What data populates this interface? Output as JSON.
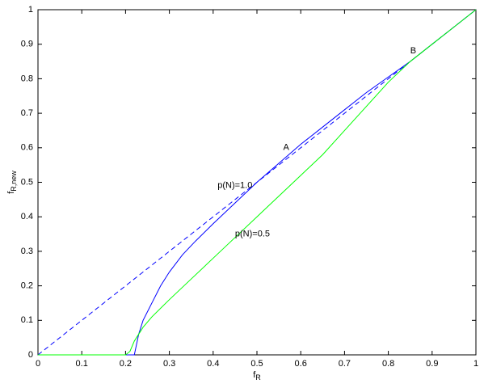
{
  "chart_data": {
    "type": "line",
    "x_label": "f",
    "x_label_subscript": "R",
    "y_label": "f",
    "y_label_subscript": "R,new",
    "xlim": [
      0,
      1
    ],
    "ylim": [
      0,
      1
    ],
    "xticks": [
      0,
      0.1,
      0.2,
      0.3,
      0.4,
      0.5,
      0.6,
      0.7,
      0.8,
      0.9,
      1
    ],
    "yticks": [
      0,
      0.1,
      0.2,
      0.3,
      0.4,
      0.5,
      0.6,
      0.7,
      0.8,
      0.9,
      1
    ],
    "grid": false,
    "series": [
      {
        "color": "#0000ff",
        "dashed": true,
        "x": [
          0,
          1
        ],
        "values": [
          0,
          1
        ]
      },
      {
        "color": "#0000ff",
        "dashed": false,
        "x": [
          0,
          0.22,
          0.225,
          0.23,
          0.24,
          0.26,
          0.28,
          0.3,
          0.33,
          0.36,
          0.4,
          0.45,
          0.5,
          0.55,
          0.6,
          0.65,
          0.7,
          0.75,
          0.8,
          0.85,
          0.9,
          0.95,
          1
        ],
        "values": [
          0,
          0,
          0.03,
          0.06,
          0.1,
          0.15,
          0.2,
          0.24,
          0.29,
          0.33,
          0.38,
          0.44,
          0.5,
          0.555,
          0.61,
          0.66,
          0.71,
          0.76,
          0.805,
          0.85,
          0.9,
          0.95,
          1
        ]
      },
      {
        "color": "#00ff00",
        "dashed": false,
        "x": [
          0,
          0.2,
          0.21,
          0.22,
          0.24,
          0.26,
          0.3,
          0.35,
          0.4,
          0.45,
          0.5,
          0.55,
          0.6,
          0.65,
          0.7,
          0.75,
          0.8,
          0.85,
          0.9,
          0.95,
          1
        ],
        "values": [
          0,
          0,
          0.01,
          0.04,
          0.08,
          0.11,
          0.16,
          0.22,
          0.28,
          0.34,
          0.4,
          0.46,
          0.52,
          0.58,
          0.65,
          0.72,
          0.79,
          0.85,
          0.9,
          0.95,
          1
        ]
      }
    ],
    "annotations": [
      {
        "text": "A",
        "x": 0.56,
        "y": 0.6
      },
      {
        "text": "B",
        "x": 0.85,
        "y": 0.88
      },
      {
        "text": "p(N)=1.0",
        "x": 0.41,
        "y": 0.49
      },
      {
        "text": "p(N)=0.5",
        "x": 0.45,
        "y": 0.35
      }
    ]
  }
}
